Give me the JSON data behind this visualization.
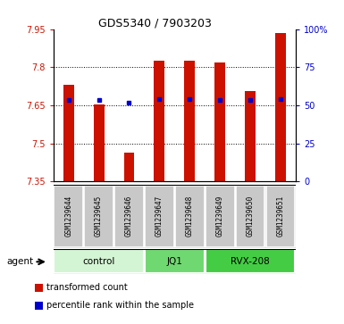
{
  "title": "GDS5340 / 7903203",
  "samples": [
    "GSM1239644",
    "GSM1239645",
    "GSM1239646",
    "GSM1239647",
    "GSM1239648",
    "GSM1239649",
    "GSM1239650",
    "GSM1239651"
  ],
  "bar_values": [
    7.73,
    7.655,
    7.465,
    7.825,
    7.825,
    7.82,
    7.705,
    7.935
  ],
  "bar_base": 7.35,
  "percentile_values": [
    7.672,
    7.672,
    7.66,
    7.675,
    7.675,
    7.672,
    7.672,
    7.675
  ],
  "ylim_left": [
    7.35,
    7.95
  ],
  "ylim_right": [
    0,
    100
  ],
  "yticks_left": [
    7.35,
    7.5,
    7.65,
    7.8,
    7.95
  ],
  "yticks_right": [
    0,
    25,
    50,
    75,
    100
  ],
  "ytick_labels_left": [
    "7.35",
    "7.5",
    "7.65",
    "7.8",
    "7.95"
  ],
  "ytick_labels_right": [
    "0",
    "25",
    "50",
    "75",
    "100%"
  ],
  "grid_lines": [
    7.5,
    7.65,
    7.8
  ],
  "groups": [
    {
      "label": "control",
      "start": 0,
      "end": 2,
      "color": "#d4f5d4"
    },
    {
      "label": "JQ1",
      "start": 3,
      "end": 4,
      "color": "#70d870"
    },
    {
      "label": "RVX-208",
      "start": 5,
      "end": 7,
      "color": "#44cc44"
    }
  ],
  "bar_color": "#cc1100",
  "percentile_color": "#0000cc",
  "tick_area_color": "#c8c8c8",
  "bar_width": 0.35,
  "legend_items": [
    {
      "label": "transformed count",
      "color": "#cc1100",
      "marker": "s"
    },
    {
      "label": "percentile rank within the sample",
      "color": "#0000cc",
      "marker": "s"
    }
  ],
  "agent_label": "agent"
}
